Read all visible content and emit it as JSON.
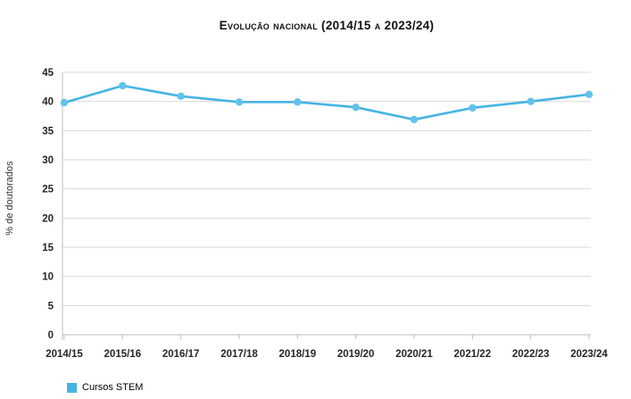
{
  "title": "Evolução nacional (2014/15 a 2023/24)",
  "chart_data": {
    "type": "line",
    "title": "Evolução nacional (2014/15 a 2023/24)",
    "xlabel": "",
    "ylabel": "% de doutorados",
    "categories": [
      "2014/15",
      "2015/16",
      "2016/17",
      "2017/18",
      "2018/19",
      "2019/20",
      "2020/21",
      "2021/22",
      "2022/23",
      "2023/24"
    ],
    "series": [
      {
        "name": "Cursos STEM",
        "color": "#45b4e3",
        "marker_color": "#62c2ea",
        "values": [
          39.8,
          42.7,
          40.9,
          39.9,
          39.9,
          39.0,
          36.9,
          38.9,
          40.0,
          41.2
        ]
      }
    ],
    "ylim": [
      0,
      45
    ],
    "ytick_step": 5,
    "grid": true,
    "legend_position": "bottom-left"
  },
  "legend": {
    "items": [
      {
        "label": "Cursos STEM",
        "color": "#45b4e3"
      }
    ]
  },
  "colors": {
    "background": "#ffffff",
    "grid": "#d9d9d9",
    "axis": "#bdbdbd",
    "tick_text": "#262626",
    "axis_title_text": "#333333",
    "title_text": "#111111"
  }
}
